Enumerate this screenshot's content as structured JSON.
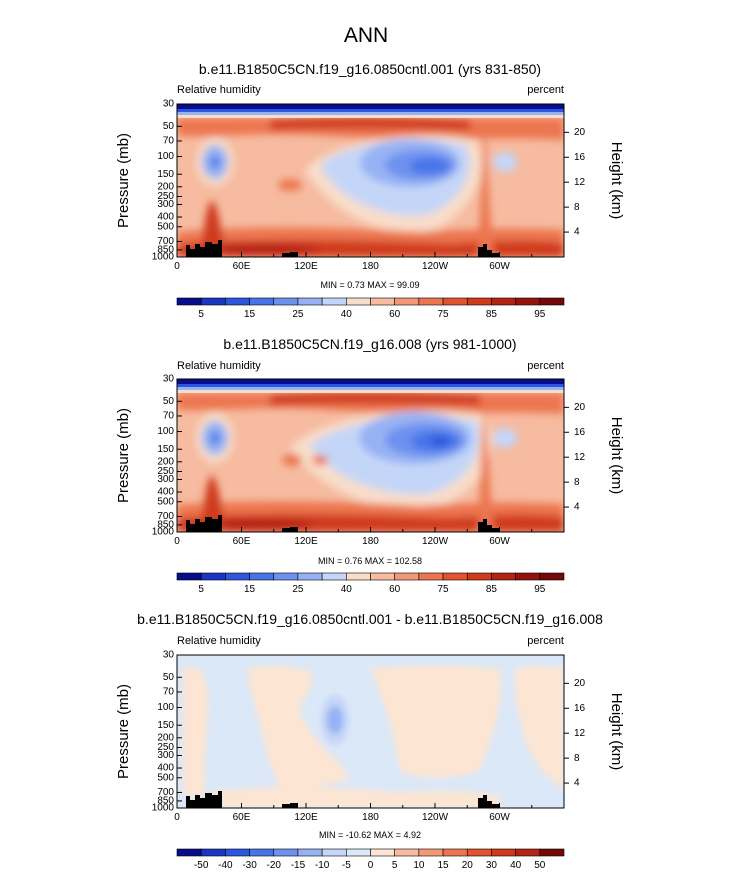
{
  "figure": {
    "title": "ANN"
  },
  "chart_data": [
    {
      "type": "heatmap",
      "title": "b.e11.B1850C5CN.f19_g16.0850cntl.001 (yrs 831-850)",
      "left_label": "Relative humidity",
      "right_label": "percent",
      "xlabel": "",
      "ylabel": "Pressure (mb)",
      "y2label": "Height (km)",
      "x_ticks": [
        "0",
        "60E",
        "120E",
        "180",
        "120W",
        "60W"
      ],
      "x_tick_values": [
        0,
        60,
        120,
        180,
        240,
        300
      ],
      "xlim": [
        0,
        360
      ],
      "y_ticks": [
        "30",
        "50",
        "70",
        "100",
        "150",
        "200",
        "250",
        "300",
        "400",
        "500",
        "700",
        "850",
        "1000"
      ],
      "y_tick_values": [
        30,
        50,
        70,
        100,
        150,
        200,
        250,
        300,
        400,
        500,
        700,
        850,
        1000
      ],
      "ylim": [
        1000,
        30
      ],
      "y2_ticks": [
        "20",
        "16",
        "12",
        "8",
        "4"
      ],
      "y2_tick_values": [
        20,
        16,
        12,
        8,
        4
      ],
      "stats": "MIN =   0.73  MAX =  99.09",
      "min": 0.73,
      "max": 99.09,
      "colorbar": {
        "labels": [
          "5",
          "15",
          "25",
          "40",
          "60",
          "75",
          "85",
          "95"
        ],
        "levels": [
          5,
          10,
          15,
          20,
          25,
          30,
          40,
          50,
          60,
          70,
          75,
          80,
          85,
          90,
          95
        ],
        "colors": [
          "#080d8c",
          "#1a36c2",
          "#2c57dd",
          "#4775e8",
          "#6d91ef",
          "#97b2f4",
          "#c4d6f8",
          "#f8ddc9",
          "#f6bba0",
          "#f29877",
          "#ec7650",
          "#e2542f",
          "#cf3a1b",
          "#b32413",
          "#93140c",
          "#730a08"
        ]
      }
    },
    {
      "type": "heatmap",
      "title": "b.e11.B1850C5CN.f19_g16.008 (yrs 981-1000)",
      "left_label": "Relative humidity",
      "right_label": "percent",
      "xlabel": "",
      "ylabel": "Pressure (mb)",
      "y2label": "Height (km)",
      "x_ticks": [
        "0",
        "60E",
        "120E",
        "180",
        "120W",
        "60W"
      ],
      "x_tick_values": [
        0,
        60,
        120,
        180,
        240,
        300
      ],
      "xlim": [
        0,
        360
      ],
      "y_ticks": [
        "30",
        "50",
        "70",
        "100",
        "150",
        "200",
        "250",
        "300",
        "400",
        "500",
        "700",
        "850",
        "1000"
      ],
      "y_tick_values": [
        30,
        50,
        70,
        100,
        150,
        200,
        250,
        300,
        400,
        500,
        700,
        850,
        1000
      ],
      "ylim": [
        1000,
        30
      ],
      "y2_ticks": [
        "20",
        "16",
        "12",
        "8",
        "4"
      ],
      "y2_tick_values": [
        20,
        16,
        12,
        8,
        4
      ],
      "stats": "MIN =   0.76  MAX = 102.58",
      "min": 0.76,
      "max": 102.58,
      "colorbar": {
        "labels": [
          "5",
          "15",
          "25",
          "40",
          "60",
          "75",
          "85",
          "95"
        ],
        "levels": [
          5,
          10,
          15,
          20,
          25,
          30,
          40,
          50,
          60,
          70,
          75,
          80,
          85,
          90,
          95
        ],
        "colors": [
          "#080d8c",
          "#1a36c2",
          "#2c57dd",
          "#4775e8",
          "#6d91ef",
          "#97b2f4",
          "#c4d6f8",
          "#f8ddc9",
          "#f6bba0",
          "#f29877",
          "#ec7650",
          "#e2542f",
          "#cf3a1b",
          "#b32413",
          "#93140c",
          "#730a08"
        ]
      }
    },
    {
      "type": "heatmap",
      "title": "b.e11.B1850C5CN.f19_g16.0850cntl.001 - b.e11.B1850C5CN.f19_g16.008",
      "left_label": "Relative humidity",
      "right_label": "percent",
      "xlabel": "",
      "ylabel": "Pressure (mb)",
      "y2label": "Height (km)",
      "x_ticks": [
        "0",
        "60E",
        "120E",
        "180",
        "120W",
        "60W"
      ],
      "x_tick_values": [
        0,
        60,
        120,
        180,
        240,
        300
      ],
      "xlim": [
        0,
        360
      ],
      "y_ticks": [
        "30",
        "50",
        "70",
        "100",
        "150",
        "200",
        "250",
        "300",
        "400",
        "500",
        "700",
        "850",
        "1000"
      ],
      "y_tick_values": [
        30,
        50,
        70,
        100,
        150,
        200,
        250,
        300,
        400,
        500,
        700,
        850,
        1000
      ],
      "ylim": [
        1000,
        30
      ],
      "y2_ticks": [
        "20",
        "16",
        "12",
        "8",
        "4"
      ],
      "y2_tick_values": [
        20,
        16,
        12,
        8,
        4
      ],
      "stats": "MIN = -10.62  MAX =   4.92",
      "min": -10.62,
      "max": 4.92,
      "colorbar": {
        "labels": [
          "-50",
          "-40",
          "-30",
          "-20",
          "-15",
          "-10",
          "-5",
          "0",
          "5",
          "10",
          "15",
          "20",
          "30",
          "40",
          "50"
        ],
        "levels": [
          -50,
          -40,
          -30,
          -20,
          -15,
          -10,
          -5,
          0,
          5,
          10,
          15,
          20,
          30,
          40,
          50
        ],
        "colors": [
          "#080d8c",
          "#1a36c2",
          "#2c57dd",
          "#4775e8",
          "#6d91ef",
          "#97b2f4",
          "#c4d6f8",
          "#dbe8f8",
          "#fce5d3",
          "#f6bba0",
          "#f29877",
          "#ec7650",
          "#e2542f",
          "#cf3a1b",
          "#b32413",
          "#730a08"
        ]
      }
    }
  ]
}
